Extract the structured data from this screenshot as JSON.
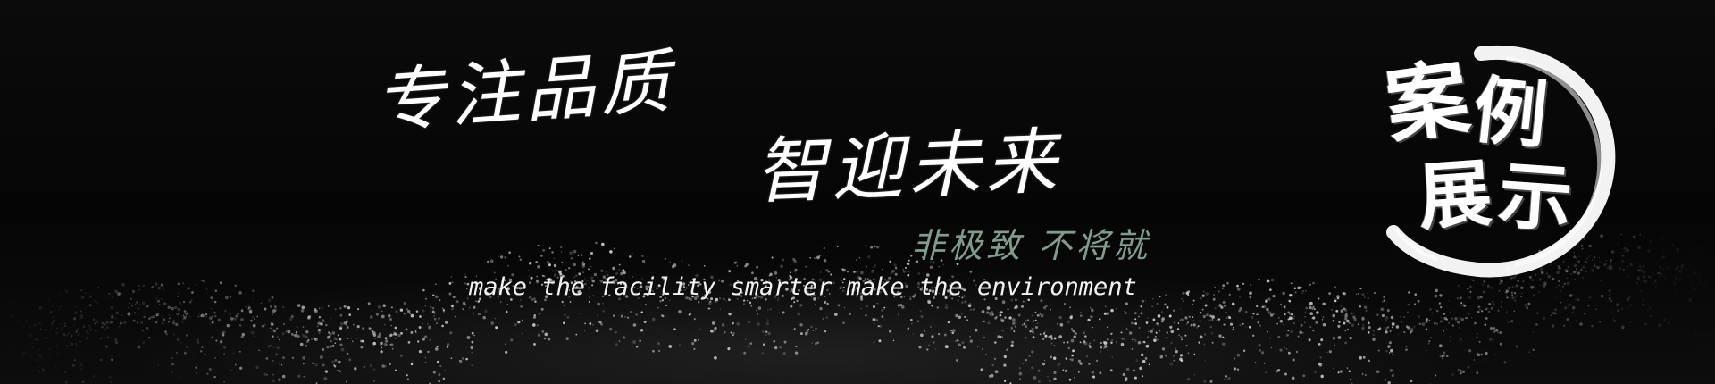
{
  "banner": {
    "headline_1": "专注品质",
    "headline_2": "智迎未来",
    "tagline": "非极致  不将就",
    "subtitle": "make the facility smarter make the environment"
  },
  "badge": {
    "chars": [
      "案",
      "例",
      "展",
      "示"
    ]
  },
  "colors": {
    "background": "#000000",
    "headline": "#ffffff",
    "tagline": "#7f9c8c",
    "subtitle": "#f2f2f2",
    "particles": "#d9d9d9"
  }
}
